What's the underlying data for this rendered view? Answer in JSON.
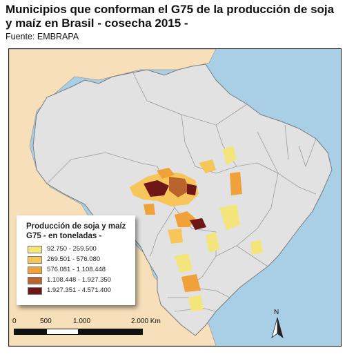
{
  "title": "Municipios que conforman el G75 de la producción de soja y maíz en Brasil - cosecha 2015 -",
  "source": "Fuente: EMBRAPA",
  "legend": {
    "title": "Producción de soja y maíz G75 - en toneladas -",
    "classes": [
      {
        "label": "92.750 - 259.500",
        "color": "#f3e57c"
      },
      {
        "label": "269.501 - 576.080",
        "color": "#f6c65a"
      },
      {
        "label": "576.081 - 1.108.448",
        "color": "#f1a13a"
      },
      {
        "label": "1.108.448 - 1.927.350",
        "color": "#b9642c"
      },
      {
        "label": "1.927.351 - 4.571.400",
        "color": "#6d1717"
      }
    ]
  },
  "scale_bar": {
    "ticks": [
      "0",
      "500",
      "1.000",
      "2.000 Km"
    ]
  },
  "north_arrow": {
    "label": "N"
  },
  "colors": {
    "ocean": "#a9cfe6",
    "brazil": "#e2e2e2",
    "neighbors": "#f6dfb9",
    "borders": "#888888"
  }
}
